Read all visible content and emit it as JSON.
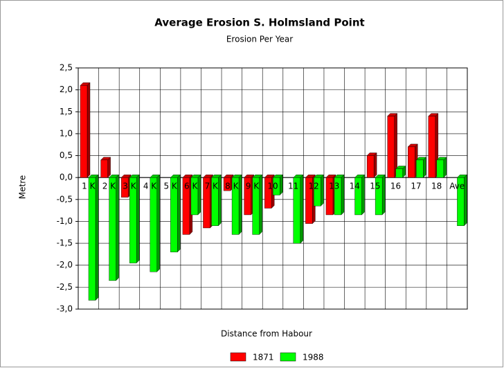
{
  "chart_data": {
    "type": "bar",
    "title": "Average Erosion S. Holmsland Point",
    "subtitle": "Erosion Per Year",
    "y_label": "Metre",
    "x_label": "Distance from Habour",
    "categories": [
      "1 K",
      "2 K",
      "3 K",
      "4 K",
      "5 K",
      "6 K",
      "7 K",
      "8 K",
      "9 K",
      "10",
      "11",
      "12",
      "13",
      "14",
      "15",
      "16",
      "17",
      "18",
      "Ave"
    ],
    "series": [
      {
        "name": "1871",
        "color": "#ff0000",
        "values": [
          2.1,
          0.4,
          -0.45,
          0,
          0,
          -1.3,
          -1.15,
          -0.3,
          -0.85,
          -0.7,
          0,
          -1.05,
          -0.85,
          0,
          0.5,
          1.4,
          0.7,
          1.4,
          0
        ]
      },
      {
        "name": "1988",
        "color": "#00ff00",
        "values": [
          -2.8,
          -2.35,
          -1.95,
          -2.15,
          -1.7,
          -0.85,
          -1.1,
          -1.3,
          -1.3,
          -0.4,
          -1.5,
          -0.65,
          -0.85,
          -0.85,
          -0.85,
          0.2,
          0.4,
          0.4,
          -1.1
        ]
      }
    ],
    "ylim": [
      -3,
      2.5
    ],
    "yticks": [
      {
        "value": 2.5,
        "label": "2,5"
      },
      {
        "value": 2,
        "label": "2,0"
      },
      {
        "value": 1.5,
        "label": "1,5"
      },
      {
        "value": 1,
        "label": "1,0"
      },
      {
        "value": 0.5,
        "label": "0,5"
      },
      {
        "value": 0,
        "label": "0,0"
      },
      {
        "value": -0.5,
        "label": "-0,5"
      },
      {
        "value": -1,
        "label": "-1,0"
      },
      {
        "value": -1.5,
        "label": "-1,5"
      },
      {
        "value": -2,
        "label": "-2,0"
      },
      {
        "value": -2.5,
        "label": "-2,5"
      },
      {
        "value": -3,
        "label": "-3,0"
      }
    ],
    "grid": true,
    "legend": "bottom"
  }
}
